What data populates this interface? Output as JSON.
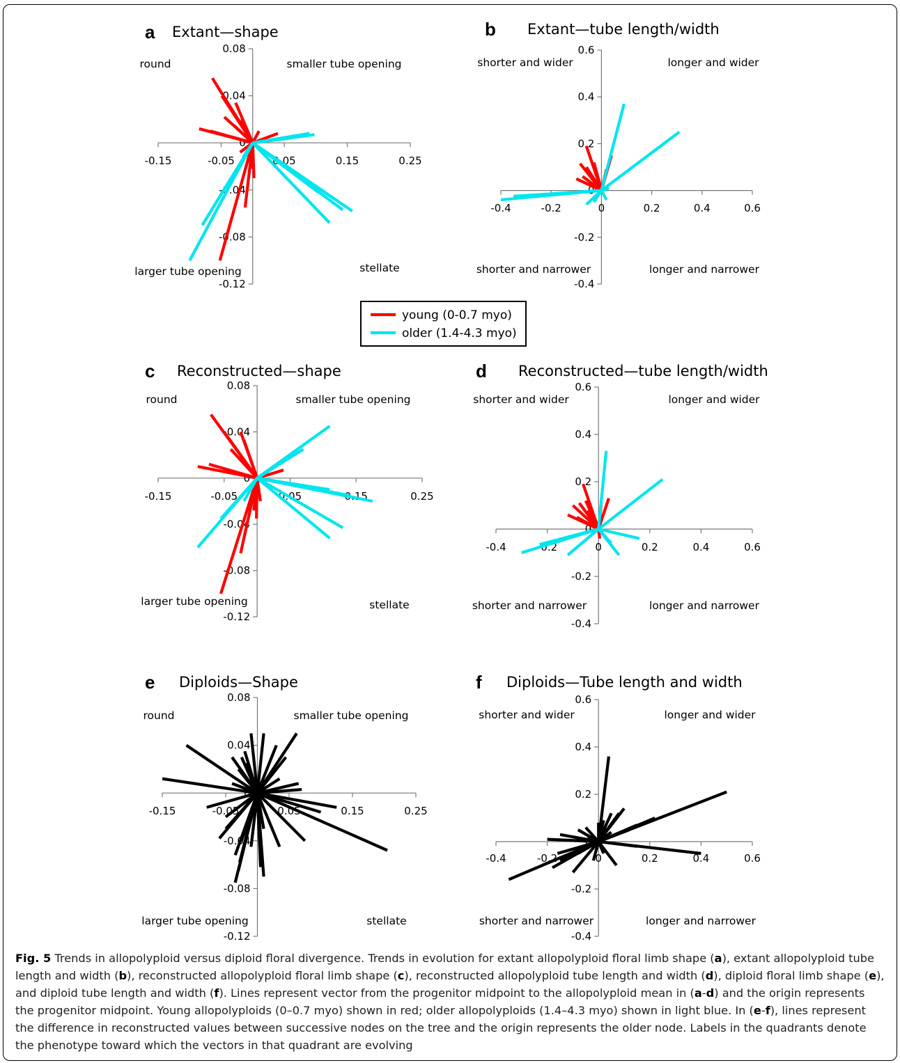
{
  "legend": {
    "items": [
      {
        "label": "young (0-0.7 myo)",
        "color": "#ff0000"
      },
      {
        "label": "older (1.4-4.3 myo)",
        "color": "#00e5ee"
      }
    ]
  },
  "caption": {
    "figure_label": "Fig. 5",
    "segments": [
      {
        "text": " Trends in allopolyploid versus diploid floral divergence. Trends in evolution for extant allopolyploid floral limb shape ("
      },
      {
        "text": "a",
        "bold": true
      },
      {
        "text": "), extant allopolyploid tube length and width ("
      },
      {
        "text": "b",
        "bold": true
      },
      {
        "text": "), reconstructed allopolyploid floral limb shape ("
      },
      {
        "text": "c",
        "bold": true
      },
      {
        "text": "), reconstructed allopolyploid tube length and width ("
      },
      {
        "text": "d",
        "bold": true
      },
      {
        "text": "), diploid floral limb shape ("
      },
      {
        "text": "e",
        "bold": true
      },
      {
        "text": "), and diploid tube length and width ("
      },
      {
        "text": "f",
        "bold": true
      },
      {
        "text": "). Lines represent vector from the progenitor midpoint to the allopolyploid mean in ("
      },
      {
        "text": "a",
        "bold": true
      },
      {
        "text": "-"
      },
      {
        "text": "d",
        "bold": true
      },
      {
        "text": ") and the origin represents the progenitor midpoint. Young allopolyploids (0–0.7 myo) shown in red; older allopolyploids (1.4–4.3 myo) shown in light blue. In ("
      },
      {
        "text": "e",
        "bold": true
      },
      {
        "text": "-"
      },
      {
        "text": "f",
        "bold": true
      },
      {
        "text": "), lines represent the difference in reconstructed values between successive nodes on the tree and the origin represents the older node. Labels in the quadrants denote the phenotype toward which the vectors in that quadrant are evolving"
      }
    ]
  },
  "chart_data": [
    {
      "type": "line",
      "panel": "a",
      "title": "Extant—shape",
      "x_ticks": [
        "-0.15",
        "-0.05",
        "0.05",
        "0.15",
        "0.25"
      ],
      "y_ticks": [
        "0.08",
        "0.04",
        "0",
        "-0.04",
        "-0.08",
        "-0.12"
      ],
      "xlim": [
        -0.15,
        0.25
      ],
      "ylim": [
        -0.12,
        0.08
      ],
      "quadrant_labels": {
        "top_left": "round",
        "top_right": "smaller tube opening",
        "bottom_left": "larger tube opening",
        "bottom_right": "stellate"
      },
      "series": [
        {
          "name": "young (0-0.7 myo)",
          "color": "#ff0000",
          "vectors": [
            [
              -0.064,
              0.055
            ],
            [
              -0.049,
              0.04
            ],
            [
              -0.027,
              0.034
            ],
            [
              -0.035,
              0.03
            ],
            [
              -0.045,
              0.022
            ],
            [
              -0.02,
              0.019
            ],
            [
              -0.03,
              0.015
            ],
            [
              -0.085,
              0.012
            ],
            [
              -0.067,
              0.01
            ],
            [
              -0.033,
              0.005
            ],
            [
              0.04,
              0.008
            ],
            [
              0.01,
              0.01
            ],
            [
              -0.02,
              -0.008
            ],
            [
              0.002,
              -0.03
            ],
            [
              -0.003,
              -0.022
            ],
            [
              -0.002,
              -0.016
            ],
            [
              -0.052,
              -0.1
            ],
            [
              -0.012,
              -0.055
            ]
          ]
        },
        {
          "name": "older (1.4-4.3 myo)",
          "color": "#00e5ee",
          "vectors": [
            [
              0.09,
              0.008
            ],
            [
              0.098,
              0.007
            ],
            [
              0.085,
              0.006
            ],
            [
              0.06,
              0.004
            ],
            [
              -0.1,
              -0.1
            ],
            [
              -0.08,
              -0.07
            ],
            [
              -0.03,
              -0.03
            ],
            [
              0.158,
              -0.058
            ],
            [
              0.143,
              -0.057
            ],
            [
              0.13,
              -0.048
            ],
            [
              0.122,
              -0.068
            ],
            [
              0.104,
              -0.042
            ],
            [
              -0.015,
              -0.012
            ]
          ]
        }
      ]
    },
    {
      "type": "line",
      "panel": "b",
      "title": "Extant—tube length/width",
      "x_ticks": [
        "-0.4",
        "-0.2",
        "0",
        "0.2",
        "0.4",
        "0.6"
      ],
      "y_ticks": [
        "0.6",
        "0.4",
        "0.2",
        "0",
        "-0.2",
        "-0.4"
      ],
      "xlim": [
        -0.4,
        0.6
      ],
      "ylim": [
        -0.4,
        0.6
      ],
      "quadrant_labels": {
        "top_left": "shorter and wider",
        "top_right": "longer and wider",
        "bottom_left": "shorter and narrower",
        "bottom_right": "longer and narrower"
      },
      "series": [
        {
          "name": "young (0-0.7 myo)",
          "color": "#ff0000",
          "vectors": [
            [
              -0.06,
              0.19
            ],
            [
              -0.085,
              0.115
            ],
            [
              -0.06,
              0.1
            ],
            [
              -0.03,
              0.12
            ],
            [
              0.04,
              0.15
            ],
            [
              -0.1,
              0.05
            ],
            [
              -0.075,
              0.06
            ],
            [
              0.02,
              0.09
            ],
            [
              -0.045,
              0.07
            ],
            [
              -0.02,
              0.08
            ]
          ]
        },
        {
          "name": "older (1.4-4.3 myo)",
          "color": "#00e5ee",
          "vectors": [
            [
              0.09,
              0.37
            ],
            [
              0.31,
              0.25
            ],
            [
              -0.4,
              -0.04
            ],
            [
              -0.35,
              -0.025
            ],
            [
              -0.06,
              -0.06
            ],
            [
              -0.03,
              -0.05
            ],
            [
              0.02,
              -0.04
            ],
            [
              0.03,
              0.01
            ]
          ]
        }
      ]
    },
    {
      "type": "line",
      "panel": "c",
      "title": "Reconstructed—shape",
      "x_ticks": [
        "-0.15",
        "-0.05",
        "0.05",
        "0.15",
        "0.25"
      ],
      "y_ticks": [
        "0.08",
        "0.04",
        "0",
        "-0.04",
        "-0.08",
        "-0.12"
      ],
      "xlim": [
        -0.15,
        0.25
      ],
      "ylim": [
        -0.12,
        0.08
      ],
      "quadrant_labels": {
        "top_left": "round",
        "top_right": "smaller tube opening",
        "bottom_left": "larger tube opening",
        "bottom_right": "stellate"
      },
      "series": [
        {
          "name": "young (0-0.7 myo)",
          "color": "#ff0000",
          "vectors": [
            [
              -0.07,
              0.055
            ],
            [
              -0.05,
              0.04
            ],
            [
              -0.025,
              0.04
            ],
            [
              -0.02,
              0.033
            ],
            [
              -0.04,
              0.025
            ],
            [
              -0.09,
              0.01
            ],
            [
              -0.073,
              0.012
            ],
            [
              0.04,
              0.007
            ],
            [
              0.02,
              0.008
            ],
            [
              -0.001,
              -0.035
            ],
            [
              -0.005,
              -0.028
            ],
            [
              0.005,
              -0.02
            ],
            [
              -0.055,
              -0.1
            ],
            [
              -0.025,
              -0.065
            ]
          ]
        },
        {
          "name": "older (1.4-4.3 myo)",
          "color": "#00e5ee",
          "vectors": [
            [
              0.11,
              0.045
            ],
            [
              0.07,
              0.025
            ],
            [
              0.05,
              0.018
            ],
            [
              0.175,
              -0.02
            ],
            [
              0.14,
              -0.015
            ],
            [
              0.11,
              -0.01
            ],
            [
              0.13,
              -0.043
            ],
            [
              0.11,
              -0.052
            ],
            [
              -0.09,
              -0.06
            ],
            [
              -0.055,
              -0.035
            ],
            [
              -0.02,
              -0.02
            ]
          ]
        }
      ]
    },
    {
      "type": "line",
      "panel": "d",
      "title": "Reconstructed—tube length/width",
      "x_ticks": [
        "-0.4",
        "-0.2",
        "0",
        "0.2",
        "0.4",
        "0.6"
      ],
      "y_ticks": [
        "0.6",
        "0.4",
        "0.2",
        "0",
        "-0.2",
        "-0.4"
      ],
      "xlim": [
        -0.4,
        0.6
      ],
      "ylim": [
        -0.4,
        0.6
      ],
      "quadrant_labels": {
        "top_left": "shorter and wider",
        "top_right": "longer and wider",
        "bottom_left": "shorter and narrower",
        "bottom_right": "longer and narrower"
      },
      "series": [
        {
          "name": "young (0-0.7 myo)",
          "color": "#ff0000",
          "vectors": [
            [
              -0.06,
              0.19
            ],
            [
              -0.1,
              0.1
            ],
            [
              -0.075,
              0.11
            ],
            [
              -0.05,
              0.12
            ],
            [
              0.04,
              0.13
            ],
            [
              -0.12,
              0.06
            ],
            [
              -0.085,
              0.05
            ],
            [
              0.01,
              0.1
            ],
            [
              -0.04,
              0.08
            ],
            [
              0.005,
              -0.04
            ]
          ]
        },
        {
          "name": "older (1.4-4.3 myo)",
          "color": "#00e5ee",
          "vectors": [
            [
              0.03,
              0.33
            ],
            [
              0.25,
              0.21
            ],
            [
              -0.3,
              -0.1
            ],
            [
              -0.23,
              -0.065
            ],
            [
              -0.12,
              -0.11
            ],
            [
              0.16,
              -0.04
            ],
            [
              0.08,
              -0.11
            ],
            [
              0.05,
              -0.06
            ]
          ]
        }
      ]
    },
    {
      "type": "line",
      "panel": "e",
      "title": "Diploids—Shape",
      "x_ticks": [
        "-0.15",
        "-0.05",
        "0.05",
        "0.15",
        "0.25"
      ],
      "y_ticks": [
        "0.08",
        "0.04",
        "0",
        "-0.04",
        "-0.08",
        "-0.12"
      ],
      "xlim": [
        -0.15,
        0.25
      ],
      "ylim": [
        -0.12,
        0.08
      ],
      "quadrant_labels": {
        "top_left": "round",
        "top_right": "smaller tube opening",
        "bottom_left": "larger tube opening",
        "bottom_right": "stellate"
      },
      "series": [
        {
          "name": "diploid",
          "color": "#000000",
          "vectors": [
            [
              -0.112,
              0.04
            ],
            [
              -0.15,
              0.012
            ],
            [
              -0.04,
              0.03
            ],
            [
              -0.03,
              0.02
            ],
            [
              -0.018,
              0.025
            ],
            [
              -0.025,
              0.03
            ],
            [
              -0.02,
              0.035
            ],
            [
              -0.01,
              0.05
            ],
            [
              0.01,
              0.05
            ],
            [
              0.03,
              0.04
            ],
            [
              0.062,
              0.05
            ],
            [
              0.045,
              0.03
            ],
            [
              0.07,
              0.003
            ],
            [
              0.125,
              -0.012
            ],
            [
              0.1,
              -0.016
            ],
            [
              0.205,
              -0.048
            ],
            [
              0.075,
              -0.04
            ],
            [
              0.035,
              -0.045
            ],
            [
              0.01,
              -0.03
            ],
            [
              0.003,
              -0.01
            ],
            [
              -0.08,
              -0.012
            ],
            [
              -0.05,
              -0.02
            ],
            [
              -0.06,
              -0.038
            ],
            [
              -0.05,
              -0.03
            ],
            [
              -0.035,
              -0.052
            ],
            [
              -0.025,
              -0.04
            ],
            [
              -0.028,
              -0.058
            ],
            [
              -0.035,
              -0.075
            ],
            [
              -0.03,
              -0.065
            ],
            [
              0.005,
              -0.062
            ],
            [
              0.01,
              -0.07
            ],
            [
              -0.01,
              -0.045
            ],
            [
              -0.04,
              0.008
            ],
            [
              0.065,
              0.008
            ],
            [
              0.035,
              0.012
            ]
          ]
        }
      ]
    },
    {
      "type": "line",
      "panel": "f",
      "title": "Diploids—Tube length and width",
      "x_ticks": [
        "-0.4",
        "-0.2",
        "0",
        "0.2",
        "0.4",
        "0.6"
      ],
      "y_ticks": [
        "0.6",
        "0.4",
        "0.2",
        "0",
        "-0.2",
        "-0.4"
      ],
      "xlim": [
        -0.4,
        0.6
      ],
      "ylim": [
        -0.4,
        0.6
      ],
      "quadrant_labels": {
        "top_left": "shorter and wider",
        "top_right": "longer and wider",
        "bottom_left": "shorter and narrower",
        "bottom_right": "longer and narrower"
      },
      "series": [
        {
          "name": "diploid",
          "color": "#000000",
          "vectors": [
            [
              0.04,
              0.36
            ],
            [
              0.5,
              0.21
            ],
            [
              0.4,
              -0.05
            ],
            [
              0.22,
              0.1
            ],
            [
              0.15,
              0.07
            ],
            [
              0.1,
              0.14
            ],
            [
              0.05,
              0.12
            ],
            [
              0.12,
              0.05
            ],
            [
              0.15,
              -0.02
            ],
            [
              0.07,
              -0.1
            ],
            [
              0.02,
              -0.05
            ],
            [
              -0.35,
              -0.16
            ],
            [
              -0.22,
              -0.1
            ],
            [
              -0.18,
              -0.11
            ],
            [
              -0.16,
              -0.05
            ],
            [
              -0.15,
              -0.08
            ],
            [
              -0.12,
              -0.06
            ],
            [
              -0.1,
              -0.13
            ],
            [
              -0.08,
              -0.05
            ],
            [
              -0.2,
              0.01
            ],
            [
              -0.15,
              0.03
            ],
            [
              -0.1,
              0.02
            ],
            [
              -0.08,
              0.05
            ],
            [
              -0.05,
              0.06
            ],
            [
              0.0,
              0.08
            ],
            [
              0.02,
              0.09
            ],
            [
              0.08,
              0.12
            ],
            [
              -0.05,
              -0.03
            ],
            [
              0.05,
              0.04
            ],
            [
              -0.02,
              -0.08
            ]
          ]
        }
      ]
    }
  ]
}
